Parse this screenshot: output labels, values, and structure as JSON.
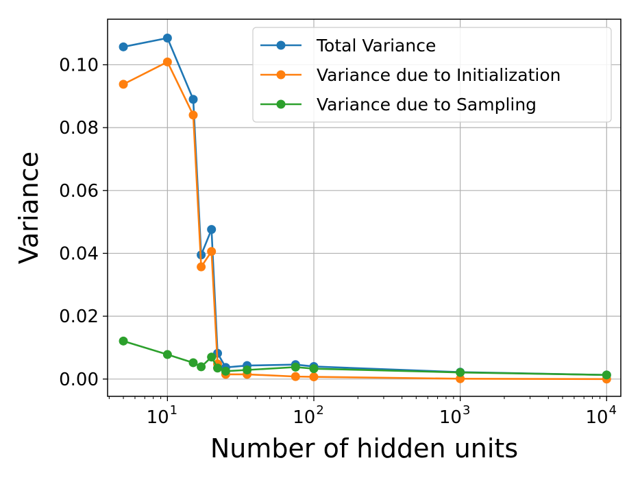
{
  "chart_data": {
    "type": "line",
    "xlabel": "Number of hidden units",
    "ylabel": "Variance",
    "x_scale": "log",
    "xlim": [
      3.9,
      12500
    ],
    "ylim": [
      -0.0055,
      0.1145
    ],
    "x_ticks": [
      {
        "value": 10,
        "base": "10",
        "exp": "1"
      },
      {
        "value": 100,
        "base": "10",
        "exp": "2"
      },
      {
        "value": 1000,
        "base": "10",
        "exp": "3"
      },
      {
        "value": 10000,
        "base": "10",
        "exp": "4"
      }
    ],
    "y_ticks": [
      {
        "value": 0.0,
        "label": "0.00"
      },
      {
        "value": 0.02,
        "label": "0.02"
      },
      {
        "value": 0.04,
        "label": "0.04"
      },
      {
        "value": 0.06,
        "label": "0.06"
      },
      {
        "value": 0.08,
        "label": "0.08"
      },
      {
        "value": 0.1,
        "label": "0.10"
      }
    ],
    "grid": true,
    "legend_position": "top-right",
    "series": [
      {
        "name": "Total Variance",
        "color": "#1f77b4",
        "x": [
          5,
          10,
          15,
          17,
          20,
          22,
          25,
          35,
          75,
          100,
          1000,
          10000
        ],
        "y": [
          0.1057,
          0.1085,
          0.089,
          0.0395,
          0.0476,
          0.0082,
          0.0037,
          0.0043,
          0.0046,
          0.004,
          0.0022,
          0.0013
        ]
      },
      {
        "name": "Variance due to Initialization",
        "color": "#ff7f0e",
        "x": [
          5,
          10,
          15,
          17,
          20,
          22,
          25,
          35,
          75,
          100,
          1000,
          10000
        ],
        "y": [
          0.0938,
          0.1009,
          0.084,
          0.0357,
          0.0406,
          0.0048,
          0.0015,
          0.0015,
          0.0008,
          0.0007,
          0.0001,
          0.0
        ]
      },
      {
        "name": "Variance due to Sampling",
        "color": "#2ca02c",
        "x": [
          5,
          10,
          15,
          17,
          20,
          22,
          25,
          35,
          75,
          100,
          1000,
          10000
        ],
        "y": [
          0.0121,
          0.0078,
          0.0052,
          0.0039,
          0.007,
          0.0035,
          0.0025,
          0.0029,
          0.0038,
          0.0033,
          0.0021,
          0.0013
        ]
      }
    ]
  }
}
